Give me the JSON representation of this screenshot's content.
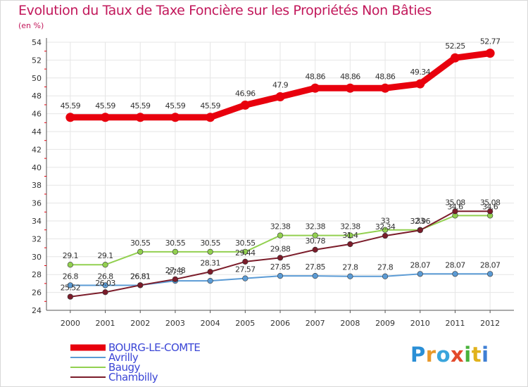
{
  "title": "Evolution du Taux de Taxe Foncière sur les Propriétés Non Bâties",
  "subtitle": "(en %)",
  "logo": {
    "text": "Proxiti",
    "letters": [
      "P",
      "r",
      "o",
      "x",
      "i",
      "t",
      "i"
    ],
    "colors": [
      "#2a8fd6",
      "#e8992b",
      "#3aa5dc",
      "#e34a2b",
      "#49b23b",
      "#e1b21c",
      "#3f7fd4"
    ]
  },
  "chart_data": {
    "type": "line",
    "title": "Evolution du Taux de Taxe Foncière sur les Propriétés Non Bâties",
    "ylabel": "(en %)",
    "xlabel": "",
    "x": [
      "2000",
      "2001",
      "2002",
      "2003",
      "2004",
      "2005",
      "2006",
      "2007",
      "2008",
      "2009",
      "2010",
      "2011",
      "2012"
    ],
    "ylim": [
      24,
      54
    ],
    "yticks": [
      24,
      26,
      28,
      30,
      32,
      34,
      36,
      38,
      40,
      42,
      44,
      46,
      48,
      50,
      52,
      54
    ],
    "legend_position": "bottom-left",
    "series": [
      {
        "name": "BOURG-LE-COMTE",
        "color": "#e8000d",
        "values": [
          45.59,
          45.59,
          45.59,
          45.59,
          45.59,
          46.96,
          47.9,
          48.86,
          48.86,
          48.86,
          49.34,
          52.25,
          52.77
        ],
        "labels": [
          "45.59",
          "45.59",
          "45.59",
          "45.59",
          "45.59",
          "46.96",
          "47.9",
          "48.86",
          "48.86",
          "48.86",
          "49.34",
          "52.25",
          "52.77"
        ]
      },
      {
        "name": "Avrilly",
        "color": "#5b9bd5",
        "values": [
          26.8,
          26.8,
          26.81,
          27.3,
          27.3,
          27.57,
          27.85,
          27.85,
          27.8,
          27.8,
          28.07,
          28.07,
          28.07
        ],
        "labels": [
          "26.8",
          "26.8",
          "26.81",
          "27.3",
          "",
          "27.57",
          "27.85",
          "27.85",
          "27.8",
          "27.8",
          "28.07",
          "28.07",
          "28.07"
        ]
      },
      {
        "name": "Baugy",
        "color": "#92d050",
        "values": [
          29.1,
          29.1,
          30.55,
          30.55,
          30.55,
          30.55,
          32.38,
          32.38,
          32.38,
          33.0,
          33.0,
          34.6,
          34.6
        ],
        "labels": [
          "29.1",
          "29.1",
          "30.55",
          "30.55",
          "30.55",
          "30.55",
          "32.38",
          "32.38",
          "32.38",
          "33",
          "33",
          "34.6",
          "34.6"
        ]
      },
      {
        "name": "Chambilly",
        "color": "#7b1c2a",
        "values": [
          25.52,
          26.03,
          26.81,
          27.48,
          28.31,
          29.44,
          29.88,
          30.78,
          31.4,
          32.34,
          32.96,
          35.08,
          35.08
        ],
        "labels": [
          "25.52",
          "26.03",
          "26.81",
          "27.48",
          "28.31",
          "29.44",
          "29.88",
          "30.78",
          "31.4",
          "32.34",
          "32.96",
          "35.08",
          "35.08"
        ]
      }
    ]
  }
}
